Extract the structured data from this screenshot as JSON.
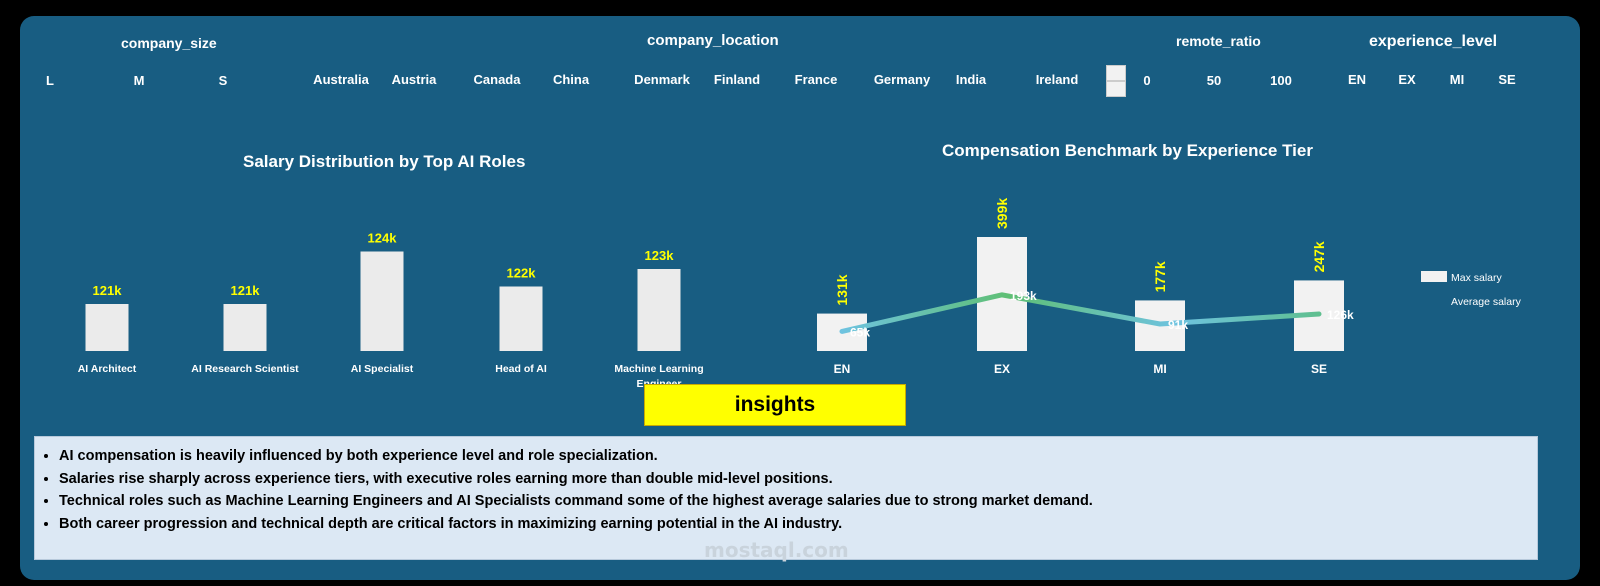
{
  "slicers": {
    "company_size": {
      "title": "company_size",
      "items": [
        "L",
        "M",
        "S"
      ]
    },
    "company_location": {
      "title": "company_location",
      "items": [
        "Australia",
        "Austria",
        "Canada",
        "China",
        "Denmark",
        "Finland",
        "France",
        "Germany",
        "India",
        "Ireland"
      ]
    },
    "remote_ratio": {
      "title": "remote_ratio",
      "items": [
        "0",
        "50",
        "100"
      ]
    },
    "experience_level": {
      "title": "experience_level",
      "items": [
        "EN",
        "EX",
        "MI",
        "SE"
      ]
    }
  },
  "chart_data": [
    {
      "type": "bar",
      "title": "Salary Distribution by Top AI Roles",
      "categories": [
        "AI Architect",
        "AI Research Scientist",
        "AI Specialist",
        "Head of AI",
        "Machine Learning Engineer"
      ],
      "values": [
        121,
        121,
        124,
        122,
        123
      ],
      "data_labels": [
        "121k",
        "121k",
        "124k",
        "122k",
        "123k"
      ],
      "bar_color": "#ebebeb",
      "label_color": "#ffff00",
      "xlabel": "",
      "ylabel": "",
      "grid": false
    },
    {
      "type": "bar",
      "title": "Compensation Benchmark by Experience Tier",
      "categories": [
        "EN",
        "EX",
        "MI",
        "SE"
      ],
      "series": [
        {
          "name": "Max salary",
          "type": "bar",
          "values": [
            131,
            399,
            177,
            247
          ],
          "data_labels": [
            "131k",
            "399k",
            "177k",
            "247k"
          ],
          "color": "#f2f2f2"
        },
        {
          "name": "Average salary",
          "type": "line",
          "values": [
            65,
            193,
            91,
            126
          ],
          "data_labels": [
            "65k",
            "193k",
            "91k",
            "126k"
          ],
          "color": "#5fbf8f"
        }
      ],
      "legend_position": "right",
      "label_color": "#ffff00",
      "grid": false
    }
  ],
  "insights": {
    "title": "insights",
    "points": [
      "AI compensation is heavily influenced by both experience level and role specialization.",
      "Salaries rise sharply across experience tiers, with executive roles earning more than double mid-level positions.",
      "Technical roles such as Machine Learning Engineers and AI Specialists command some of the highest average salaries due to strong market demand.",
      "Both career progression and technical depth are critical factors in maximizing earning potential in the AI industry."
    ]
  },
  "watermark": "mostaql.com",
  "colors": {
    "background": "#185d82",
    "highlight": "#ffff00",
    "panel": "#dce8f4"
  }
}
